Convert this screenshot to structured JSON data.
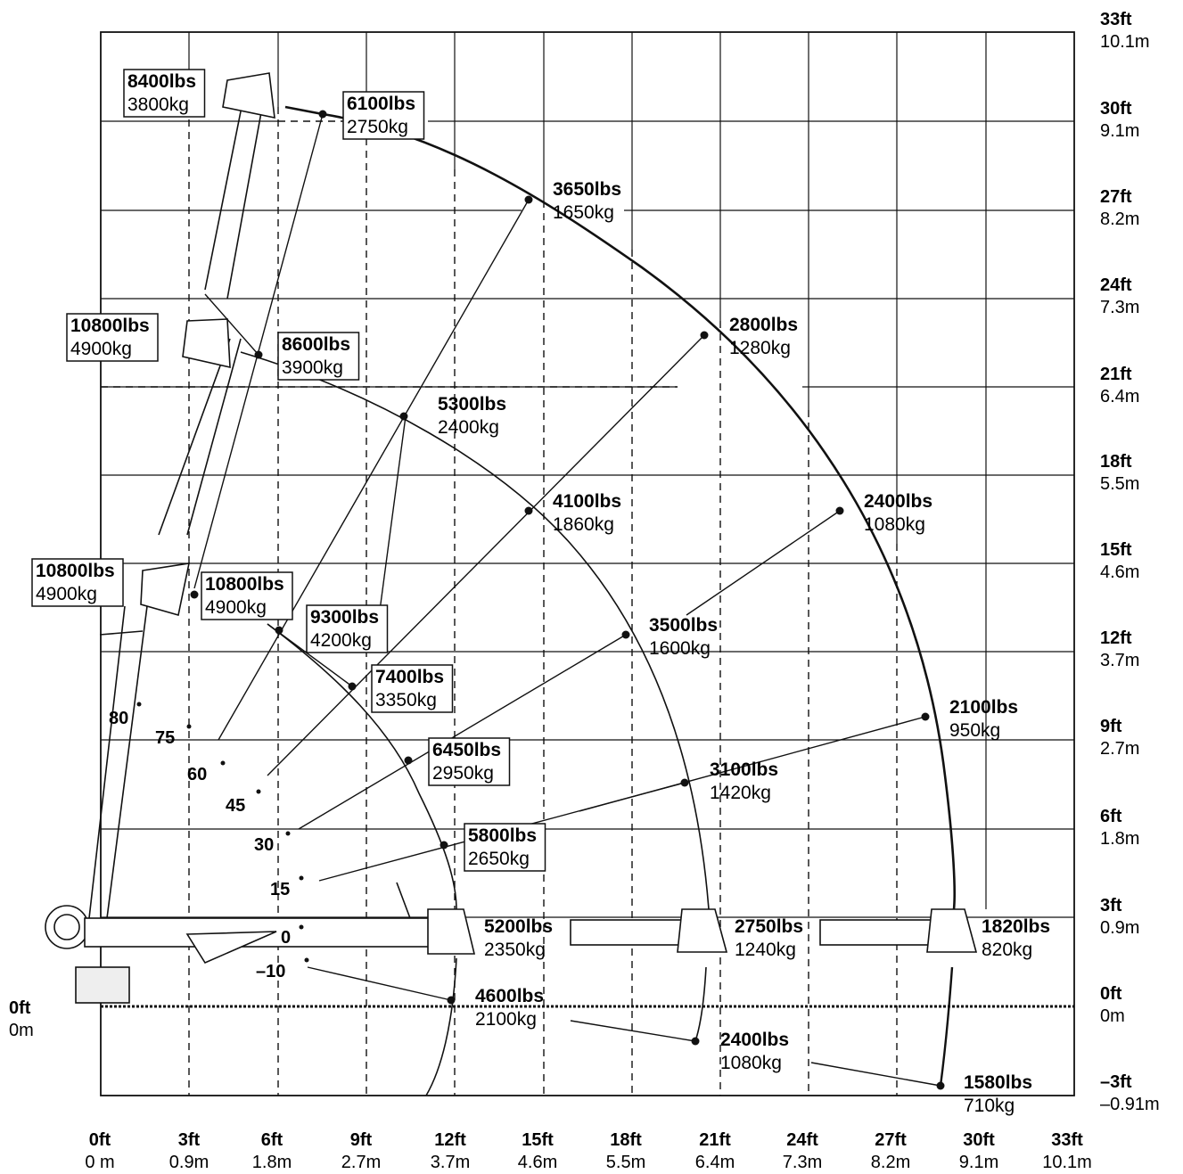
{
  "chart_data": {
    "type": "scatter",
    "title": "",
    "xlabel": "",
    "ylabel": "",
    "xlim": [
      0,
      33
    ],
    "ylim": [
      -3,
      33
    ],
    "grid": true,
    "x_ticks": [
      {
        "ft": "0ft",
        "m": "0 m"
      },
      {
        "ft": "3ft",
        "m": "0.9m"
      },
      {
        "ft": "6ft",
        "m": "1.8m"
      },
      {
        "ft": "9ft",
        "m": "2.7m"
      },
      {
        "ft": "12ft",
        "m": "3.7m"
      },
      {
        "ft": "15ft",
        "m": "4.6m"
      },
      {
        "ft": "18ft",
        "m": "5.5m"
      },
      {
        "ft": "21ft",
        "m": "6.4m"
      },
      {
        "ft": "24ft",
        "m": "7.3m"
      },
      {
        "ft": "27ft",
        "m": "8.2m"
      },
      {
        "ft": "30ft",
        "m": "9.1m"
      },
      {
        "ft": "33ft",
        "m": "10.1m"
      }
    ],
    "y_ticks": [
      {
        "ft": "33ft",
        "m": "10.1m"
      },
      {
        "ft": "30ft",
        "m": "9.1m"
      },
      {
        "ft": "27ft",
        "m": "8.2m"
      },
      {
        "ft": "24ft",
        "m": "7.3m"
      },
      {
        "ft": "21ft",
        "m": "6.4m"
      },
      {
        "ft": "18ft",
        "m": "5.5m"
      },
      {
        "ft": "15ft",
        "m": "4.6m"
      },
      {
        "ft": "12ft",
        "m": "3.7m"
      },
      {
        "ft": "9ft",
        "m": "2.7m"
      },
      {
        "ft": "6ft",
        "m": "1.8m"
      },
      {
        "ft": "3ft",
        "m": "0.9m"
      },
      {
        "ft": "0ft",
        "m": "0m"
      },
      {
        "ft": "–3ft",
        "m": "–0.91m"
      }
    ],
    "origin_label": {
      "ft": "0ft",
      "m": "0m"
    },
    "angles": [
      "80",
      "75",
      "60",
      "45",
      "30",
      "15",
      "0",
      "–10"
    ],
    "load_points": [
      {
        "lbs": "8400lbs",
        "kg": "3800kg",
        "boxed": true
      },
      {
        "lbs": "6100lbs",
        "kg": "2750kg",
        "boxed": true
      },
      {
        "lbs": "3650lbs",
        "kg": "1650kg",
        "boxed": false
      },
      {
        "lbs": "10800lbs",
        "kg": "4900kg",
        "boxed": true
      },
      {
        "lbs": "8600lbs",
        "kg": "3900kg",
        "boxed": true
      },
      {
        "lbs": "2800lbs",
        "kg": "1280kg",
        "boxed": false
      },
      {
        "lbs": "5300lbs",
        "kg": "2400kg",
        "boxed": false
      },
      {
        "lbs": "4100lbs",
        "kg": "1860kg",
        "boxed": false
      },
      {
        "lbs": "2400lbs",
        "kg": "1080kg",
        "boxed": false
      },
      {
        "lbs": "10800lbs",
        "kg": "4900kg",
        "boxed": true
      },
      {
        "lbs": "10800lbs",
        "kg": "4900kg",
        "boxed": true
      },
      {
        "lbs": "9300lbs",
        "kg": "4200kg",
        "boxed": true
      },
      {
        "lbs": "3500lbs",
        "kg": "1600kg",
        "boxed": false
      },
      {
        "lbs": "7400lbs",
        "kg": "3350kg",
        "boxed": true
      },
      {
        "lbs": "2100lbs",
        "kg": "950kg",
        "boxed": false
      },
      {
        "lbs": "6450lbs",
        "kg": "2950kg",
        "boxed": true
      },
      {
        "lbs": "3100lbs",
        "kg": "1420kg",
        "boxed": false
      },
      {
        "lbs": "5800lbs",
        "kg": "2650kg",
        "boxed": true
      },
      {
        "lbs": "5200lbs",
        "kg": "2350kg",
        "boxed": false
      },
      {
        "lbs": "2750lbs",
        "kg": "1240kg",
        "boxed": false
      },
      {
        "lbs": "1820lbs",
        "kg": "820kg",
        "boxed": false
      },
      {
        "lbs": "4600lbs",
        "kg": "2100kg",
        "boxed": false
      },
      {
        "lbs": "2400lbs",
        "kg": "1080kg",
        "boxed": false
      },
      {
        "lbs": "1580lbs",
        "kg": "710kg",
        "boxed": false
      }
    ]
  }
}
